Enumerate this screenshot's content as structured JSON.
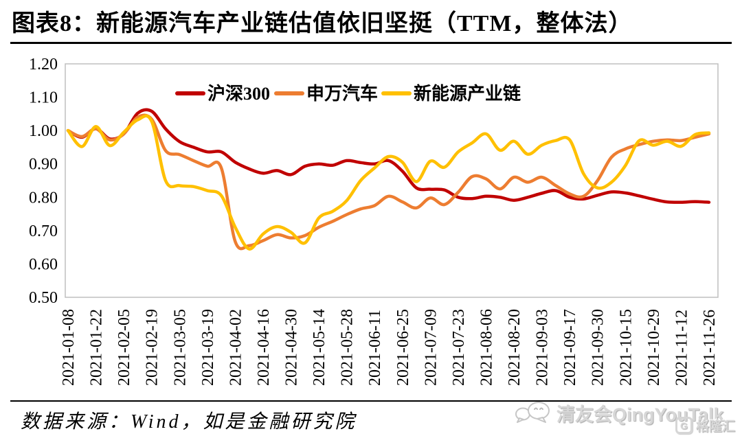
{
  "header": {
    "title": "图表8：新能源汽车产业链估值依旧坚挺（TTM，整体法）"
  },
  "footer": {
    "source": "数据来源：Wind，如是金融研究院"
  },
  "watermark": {
    "label": "清友会QingYouTalk",
    "logo_text": "格隆汇",
    "logo_letter": "G"
  },
  "colors": {
    "hs300": "#C00000",
    "sw_auto": "#ED7D31",
    "new_energy": "#FFC000",
    "plot_border": "#BFBFBF",
    "text": "#000000"
  },
  "chart_data": {
    "type": "line",
    "title": "图表8：新能源汽车产业链估值依旧坚挺（TTM，整体法）",
    "xlabel": "",
    "ylabel": "",
    "ylim": [
      0.5,
      1.2
    ],
    "grid": false,
    "legend_position": "top-center-inside",
    "y_ticks": [
      "1.20",
      "1.10",
      "1.00",
      "0.90",
      "0.80",
      "0.70",
      "0.60",
      "0.50"
    ],
    "x": [
      "2021-01-08",
      "2021-01-15",
      "2021-01-22",
      "2021-01-29",
      "2021-02-05",
      "2021-02-10",
      "2021-02-19",
      "2021-02-26",
      "2021-03-05",
      "2021-03-12",
      "2021-03-19",
      "2021-03-26",
      "2021-04-02",
      "2021-04-09",
      "2021-04-16",
      "2021-04-23",
      "2021-04-30",
      "2021-05-07",
      "2021-05-14",
      "2021-05-21",
      "2021-05-28",
      "2021-06-04",
      "2021-06-11",
      "2021-06-18",
      "2021-06-25",
      "2021-07-02",
      "2021-07-09",
      "2021-07-16",
      "2021-07-23",
      "2021-07-30",
      "2021-08-06",
      "2021-08-13",
      "2021-08-20",
      "2021-08-27",
      "2021-09-03",
      "2021-09-10",
      "2021-09-17",
      "2021-09-24",
      "2021-09-30",
      "2021-10-08",
      "2021-10-15",
      "2021-10-22",
      "2021-10-29",
      "2021-11-05",
      "2021-11-12",
      "2021-11-19",
      "2021-11-26"
    ],
    "x_tick_labels": [
      "2021-01-08",
      "2021-01-22",
      "2021-02-05",
      "2021-02-19",
      "2021-03-05",
      "2021-03-19",
      "2021-04-02",
      "2021-04-16",
      "2021-04-30",
      "2021-05-14",
      "2021-05-28",
      "2021-06-11",
      "2021-06-25",
      "2021-07-09",
      "2021-07-23",
      "2021-08-06",
      "2021-08-20",
      "2021-09-03",
      "2021-09-17",
      "2021-09-30",
      "2021-10-15",
      "2021-10-29",
      "2021-11-12",
      "2021-11-26"
    ],
    "series": [
      {
        "id": "hs300",
        "name": "沪深300",
        "color": "#C00000",
        "values": [
          1.0,
          0.98,
          1.006,
          0.975,
          0.99,
          1.052,
          1.058,
          1.005,
          0.967,
          0.95,
          0.936,
          0.936,
          0.905,
          0.885,
          0.872,
          0.88,
          0.868,
          0.893,
          0.9,
          0.896,
          0.91,
          0.904,
          0.9,
          0.91,
          0.878,
          0.828,
          0.824,
          0.822,
          0.8,
          0.796,
          0.803,
          0.8,
          0.791,
          0.8,
          0.812,
          0.82,
          0.8,
          0.795,
          0.806,
          0.816,
          0.813,
          0.804,
          0.794,
          0.786,
          0.785,
          0.787,
          0.785
        ]
      },
      {
        "id": "sw-auto",
        "name": "申万汽车",
        "color": "#ED7D31",
        "values": [
          1.0,
          0.982,
          1.005,
          0.972,
          0.99,
          1.04,
          1.034,
          0.94,
          0.928,
          0.91,
          0.893,
          0.888,
          0.667,
          0.655,
          0.67,
          0.688,
          0.678,
          0.685,
          0.71,
          0.728,
          0.748,
          0.765,
          0.775,
          0.803,
          0.786,
          0.768,
          0.798,
          0.778,
          0.815,
          0.862,
          0.855,
          0.825,
          0.86,
          0.845,
          0.86,
          0.835,
          0.81,
          0.803,
          0.85,
          0.92,
          0.945,
          0.958,
          0.968,
          0.972,
          0.97,
          0.98,
          0.99
        ]
      },
      {
        "id": "new-energy",
        "name": "新能源产业链",
        "color": "#FFC000",
        "values": [
          1.0,
          0.952,
          1.012,
          0.955,
          0.995,
          1.032,
          1.028,
          0.85,
          0.835,
          0.832,
          0.82,
          0.805,
          0.71,
          0.645,
          0.69,
          0.712,
          0.695,
          0.663,
          0.738,
          0.758,
          0.79,
          0.85,
          0.888,
          0.922,
          0.905,
          0.847,
          0.908,
          0.89,
          0.936,
          0.963,
          0.99,
          0.941,
          0.968,
          0.929,
          0.956,
          0.97,
          0.972,
          0.87,
          0.828,
          0.845,
          0.895,
          0.97,
          0.956,
          0.968,
          0.953,
          0.988,
          0.993
        ]
      }
    ]
  }
}
